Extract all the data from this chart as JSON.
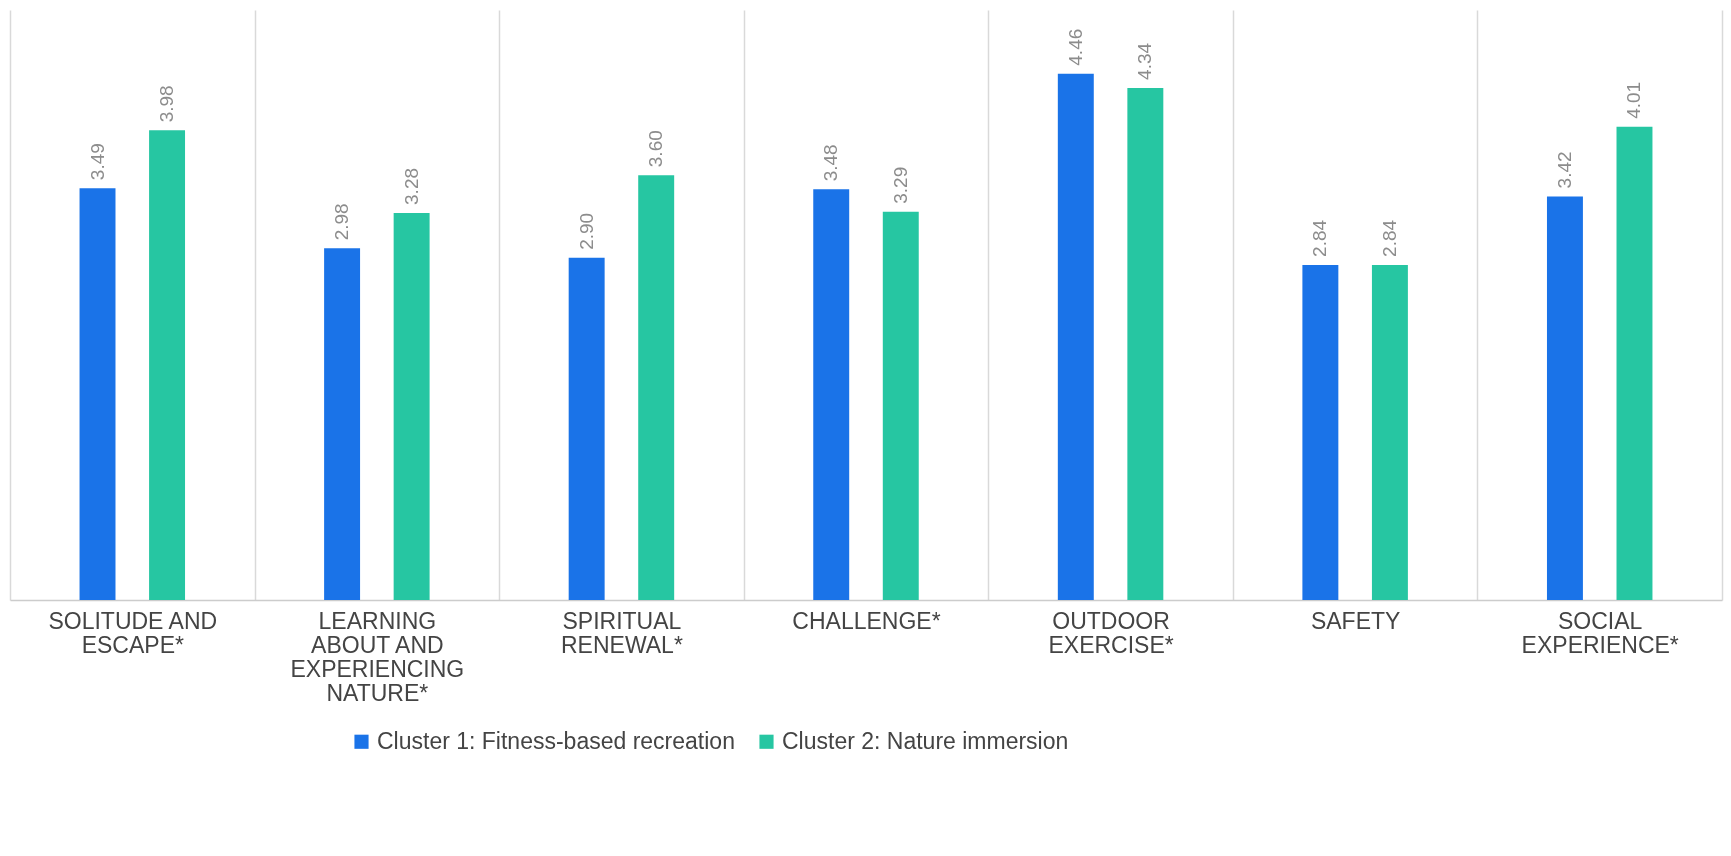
{
  "chart_data": {
    "type": "bar",
    "categories": [
      "SOLITUDE AND ESCAPE*",
      "LEARNING ABOUT AND EXPERIENCING NATURE*",
      "SPIRITUAL RENEWAL*",
      "CHALLENGE*",
      "OUTDOOR EXERCISE*",
      "SAFETY",
      "SOCIAL EXPERIENCE*"
    ],
    "series": [
      {
        "name": "Cluster 1: Fitness-based recreation",
        "color": "#1a73e8",
        "values": [
          3.49,
          2.98,
          2.9,
          3.48,
          4.46,
          2.84,
          3.42
        ],
        "value_labels": [
          "3.49",
          "2.98",
          "2.90",
          "3.48",
          "4.46",
          "2.84",
          "3.42"
        ]
      },
      {
        "name": "Cluster 2: Nature immersion",
        "color": "#26c6a2",
        "values": [
          3.98,
          3.28,
          3.6,
          3.29,
          4.34,
          2.84,
          4.01
        ],
        "value_labels": [
          "3.98",
          "3.28",
          "3.60",
          "3.29",
          "4.34",
          "2.84",
          "4.01"
        ]
      }
    ],
    "ylim": [
      0,
      5
    ],
    "grid": "x",
    "legend": "bottom",
    "tick_labels": "x"
  }
}
